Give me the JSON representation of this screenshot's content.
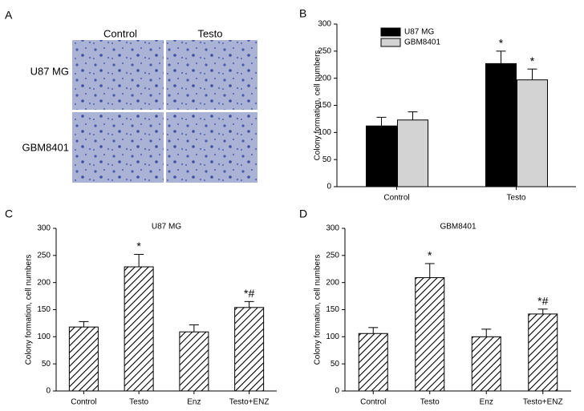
{
  "figure_a": {
    "panel_label": "A",
    "columns": [
      "Control",
      "Testo"
    ],
    "rows": [
      "U87 MG",
      "GBM8401"
    ]
  },
  "chart_data": [
    {
      "type": "bar",
      "panel_label": "B",
      "ylabel": "Colony formation, cell numbers",
      "categories": [
        "Control",
        "Testo"
      ],
      "series": [
        {
          "name": "U87 MG",
          "color": "#000000",
          "values": [
            112,
            227
          ],
          "errors": [
            16,
            23
          ],
          "annotations": [
            null,
            "*"
          ]
        },
        {
          "name": "GBM8401",
          "color": "#d3d3d3",
          "values": [
            123,
            197
          ],
          "errors": [
            15,
            20
          ],
          "annotations": [
            null,
            "*"
          ]
        }
      ],
      "ylim": [
        0,
        300
      ],
      "yticks": [
        0,
        50,
        100,
        150,
        200,
        250,
        300
      ],
      "legend": "top-left",
      "hatch": false
    },
    {
      "type": "bar",
      "panel_label": "C",
      "title": "U87 MG",
      "ylabel": "Colony formation, cell numbers",
      "categories": [
        "Control",
        "Testo",
        "Enz",
        "Testo+ENZ"
      ],
      "series": [
        {
          "color": "#ffffff",
          "values": [
            118,
            229,
            109,
            154
          ],
          "errors": [
            10,
            23,
            13,
            11
          ],
          "annotations": [
            null,
            "*",
            null,
            "*#"
          ]
        }
      ],
      "ylim": [
        0,
        300
      ],
      "yticks": [
        0,
        50,
        100,
        150,
        200,
        250,
        300
      ],
      "hatch": true
    },
    {
      "type": "bar",
      "panel_label": "D",
      "title": "GBM8401",
      "ylabel": "Colony formation, cell numbers",
      "categories": [
        "Control",
        "Testo",
        "Enz",
        "Testo+ENZ"
      ],
      "series": [
        {
          "color": "#ffffff",
          "values": [
            106,
            209,
            100,
            142
          ],
          "errors": [
            11,
            26,
            14,
            9
          ],
          "annotations": [
            null,
            "*",
            null,
            "*#"
          ]
        }
      ],
      "ylim": [
        0,
        300
      ],
      "yticks": [
        0,
        50,
        100,
        150,
        200,
        250,
        300
      ],
      "hatch": true
    }
  ]
}
